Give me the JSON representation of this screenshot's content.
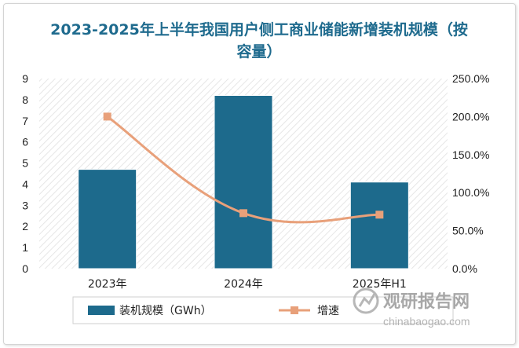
{
  "chart_data": {
    "type": "bar",
    "title": "2023-2025年上半年我国用户侧工商业储能新增装机规模（按容量）",
    "categories": [
      "2023年",
      "2024年",
      "2025年H1"
    ],
    "series": [
      {
        "name": "装机规模（GWh）",
        "type": "bar",
        "axis": "left",
        "values": [
          4.7,
          8.2,
          4.1
        ]
      },
      {
        "name": "增速",
        "type": "line",
        "axis": "right",
        "values": [
          200,
          73,
          71
        ]
      }
    ],
    "ylim": [
      0,
      9
    ],
    "yticks": [
      "0",
      "1",
      "2",
      "3",
      "4",
      "5",
      "6",
      "7",
      "8",
      "9"
    ],
    "y2lim": [
      0,
      250
    ],
    "y2ticks": [
      "0.0%",
      "50.0%",
      "100.0%",
      "150.0%",
      "200.0%",
      "250.0%"
    ],
    "legend_position": "bottom",
    "grid": false,
    "plot_background": "diagonal-hatch"
  },
  "colors": {
    "bar": "#1d6a8c",
    "line": "#e8a07a",
    "title": "#1f6b8e"
  },
  "watermark": {
    "brand": "观研报告网",
    "site": "chinabaogao.com"
  }
}
